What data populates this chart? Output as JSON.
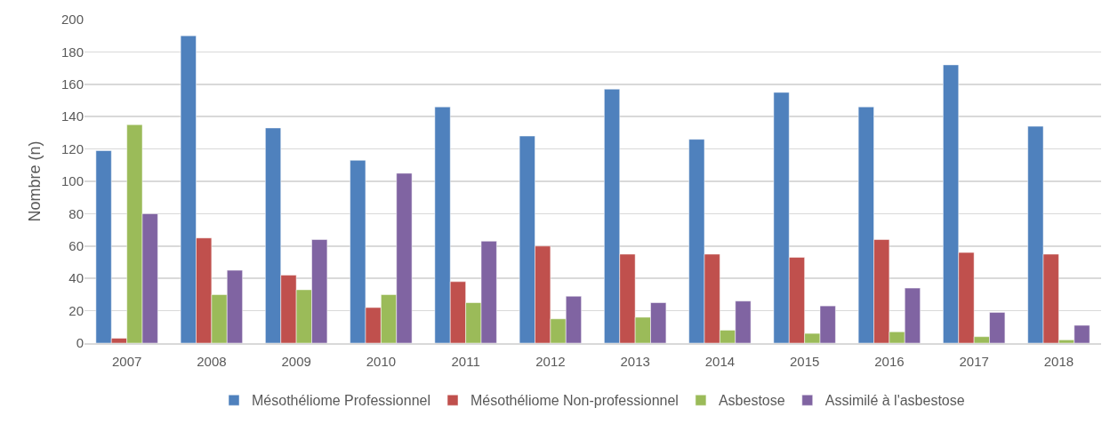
{
  "chart_data": {
    "type": "bar",
    "ylabel": "Nombre (n)",
    "categories": [
      "2007",
      "2008",
      "2009",
      "2010",
      "2011",
      "2012",
      "2013",
      "2014",
      "2015",
      "2016",
      "2017",
      "2018"
    ],
    "series": [
      {
        "name": "Mésothéliome Professionnel",
        "color": "#4f81bd",
        "values": [
          119,
          190,
          133,
          113,
          146,
          128,
          157,
          126,
          155,
          146,
          172,
          134
        ]
      },
      {
        "name": "Mésothéliome Non-professionnel",
        "color": "#c0504d",
        "values": [
          3,
          65,
          42,
          22,
          38,
          60,
          55,
          55,
          53,
          64,
          56,
          55
        ]
      },
      {
        "name": "Asbestose",
        "color": "#9bbb59",
        "values": [
          135,
          30,
          33,
          30,
          25,
          15,
          16,
          8,
          6,
          7,
          4,
          2
        ]
      },
      {
        "name": "Assimilé à l'asbestose",
        "color": "#8064a2",
        "values": [
          80,
          45,
          64,
          105,
          63,
          29,
          25,
          26,
          23,
          34,
          19,
          11
        ]
      }
    ],
    "ylim": [
      0,
      200
    ],
    "yticks": [
      0,
      20,
      40,
      60,
      80,
      100,
      120,
      140,
      160,
      180,
      200
    ],
    "grid": "y",
    "legend": "bottom"
  }
}
